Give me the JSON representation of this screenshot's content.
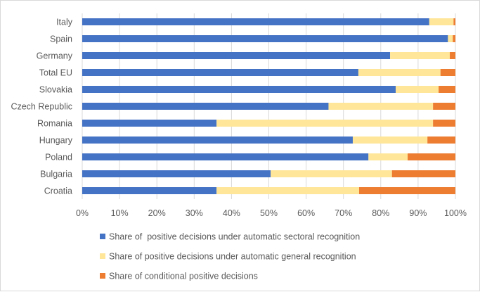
{
  "chart_data": {
    "type": "bar",
    "orientation": "horizontal",
    "stacked": "percent",
    "categories": [
      "Italy",
      "Spain",
      "Germany",
      "Total EU",
      "Slovakia",
      "Czech Republic",
      "Romania",
      "Hungary",
      "Poland",
      "Bulgaria",
      "Croatia"
    ],
    "series": [
      {
        "name": "Share of  positive decisions under automatic sectoral recognition",
        "color": "#4472c4",
        "values": [
          0.93,
          0.98,
          0.825,
          0.74,
          0.84,
          0.66,
          0.36,
          0.725,
          0.767,
          0.505,
          0.36
        ]
      },
      {
        "name": "Share of positive decisions under automatic general recognition",
        "color": "#ffe699",
        "values": [
          0.065,
          0.013,
          0.16,
          0.22,
          0.115,
          0.28,
          0.58,
          0.2,
          0.105,
          0.325,
          0.382
        ]
      },
      {
        "name": "Share of conditional positive decisions",
        "color": "#ed7d31",
        "values": [
          0.005,
          0.007,
          0.015,
          0.04,
          0.045,
          0.06,
          0.06,
          0.075,
          0.128,
          0.17,
          0.258
        ]
      }
    ],
    "xlim": [
      0,
      1
    ],
    "x_ticks": [
      "0%",
      "10%",
      "20%",
      "30%",
      "40%",
      "50%",
      "60%",
      "70%",
      "80%",
      "90%",
      "100%"
    ],
    "title": "",
    "xlabel": "",
    "ylabel": "",
    "grid": true,
    "legend_position": "bottom"
  }
}
